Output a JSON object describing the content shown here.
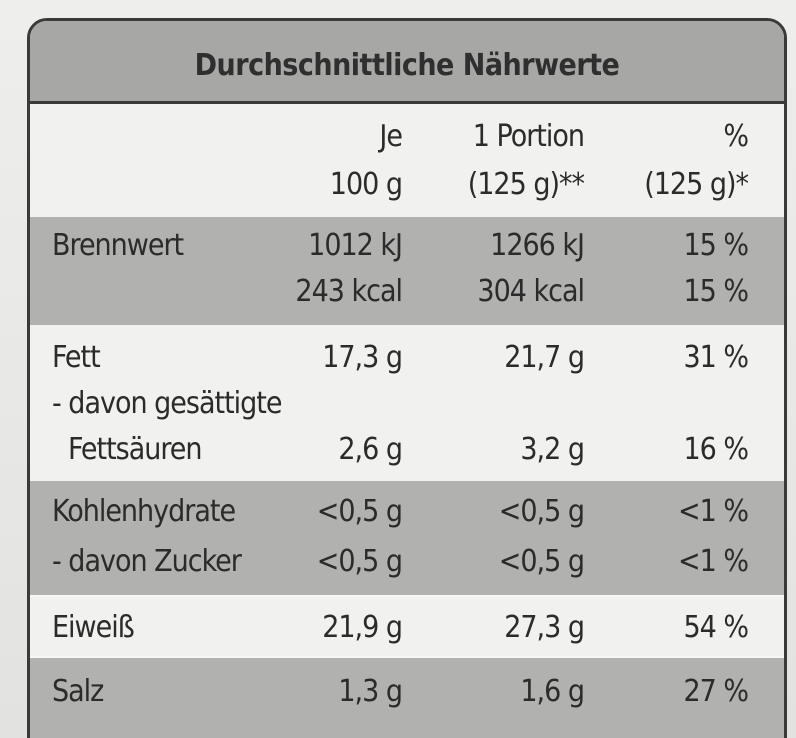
{
  "title": "Durchschnittliche Nährwerte",
  "header": {
    "col1_line1": "Je",
    "col1_line2": "100 g",
    "col2_line1": "1 Portion",
    "col2_line2": "(125 g)**",
    "col3_line1": "%",
    "col3_line2": "(125 g)*"
  },
  "rows": {
    "brennwert": {
      "label": "Brennwert",
      "kj_100": "1012 kJ",
      "kj_portion": "1266 kJ",
      "kj_pct": "15 %",
      "kcal_100": "243 kcal",
      "kcal_portion": "304 kcal",
      "kcal_pct": "15 %"
    },
    "fett": {
      "label": "Fett",
      "per100": "17,3 g",
      "portion": "21,7 g",
      "pct": "31 %"
    },
    "gesaettigte": {
      "label_line1": "- davon gesättigte",
      "label_line2": "Fettsäuren",
      "per100": "2,6 g",
      "portion": "3,2 g",
      "pct": "16 %"
    },
    "kohlenhydrate": {
      "label": "Kohlenhydrate",
      "per100": "<0,5 g",
      "portion": "<0,5 g",
      "pct": "<1 %"
    },
    "zucker": {
      "label": "- davon Zucker",
      "per100": "<0,5 g",
      "portion": "<0,5 g",
      "pct": "<1 %"
    },
    "eiweiss": {
      "label": "Eiweiß",
      "per100": "21,9 g",
      "portion": "27,3 g",
      "pct": "54 %"
    },
    "salz": {
      "label": "Salz",
      "per100": "1,3 g",
      "portion": "1,6 g",
      "pct": "27 %"
    }
  },
  "colors": {
    "shaded_row": "#b1b1af",
    "title_bar": "#a7a7a5",
    "background": "#f1f1ef",
    "border": "#3a3a3a"
  }
}
